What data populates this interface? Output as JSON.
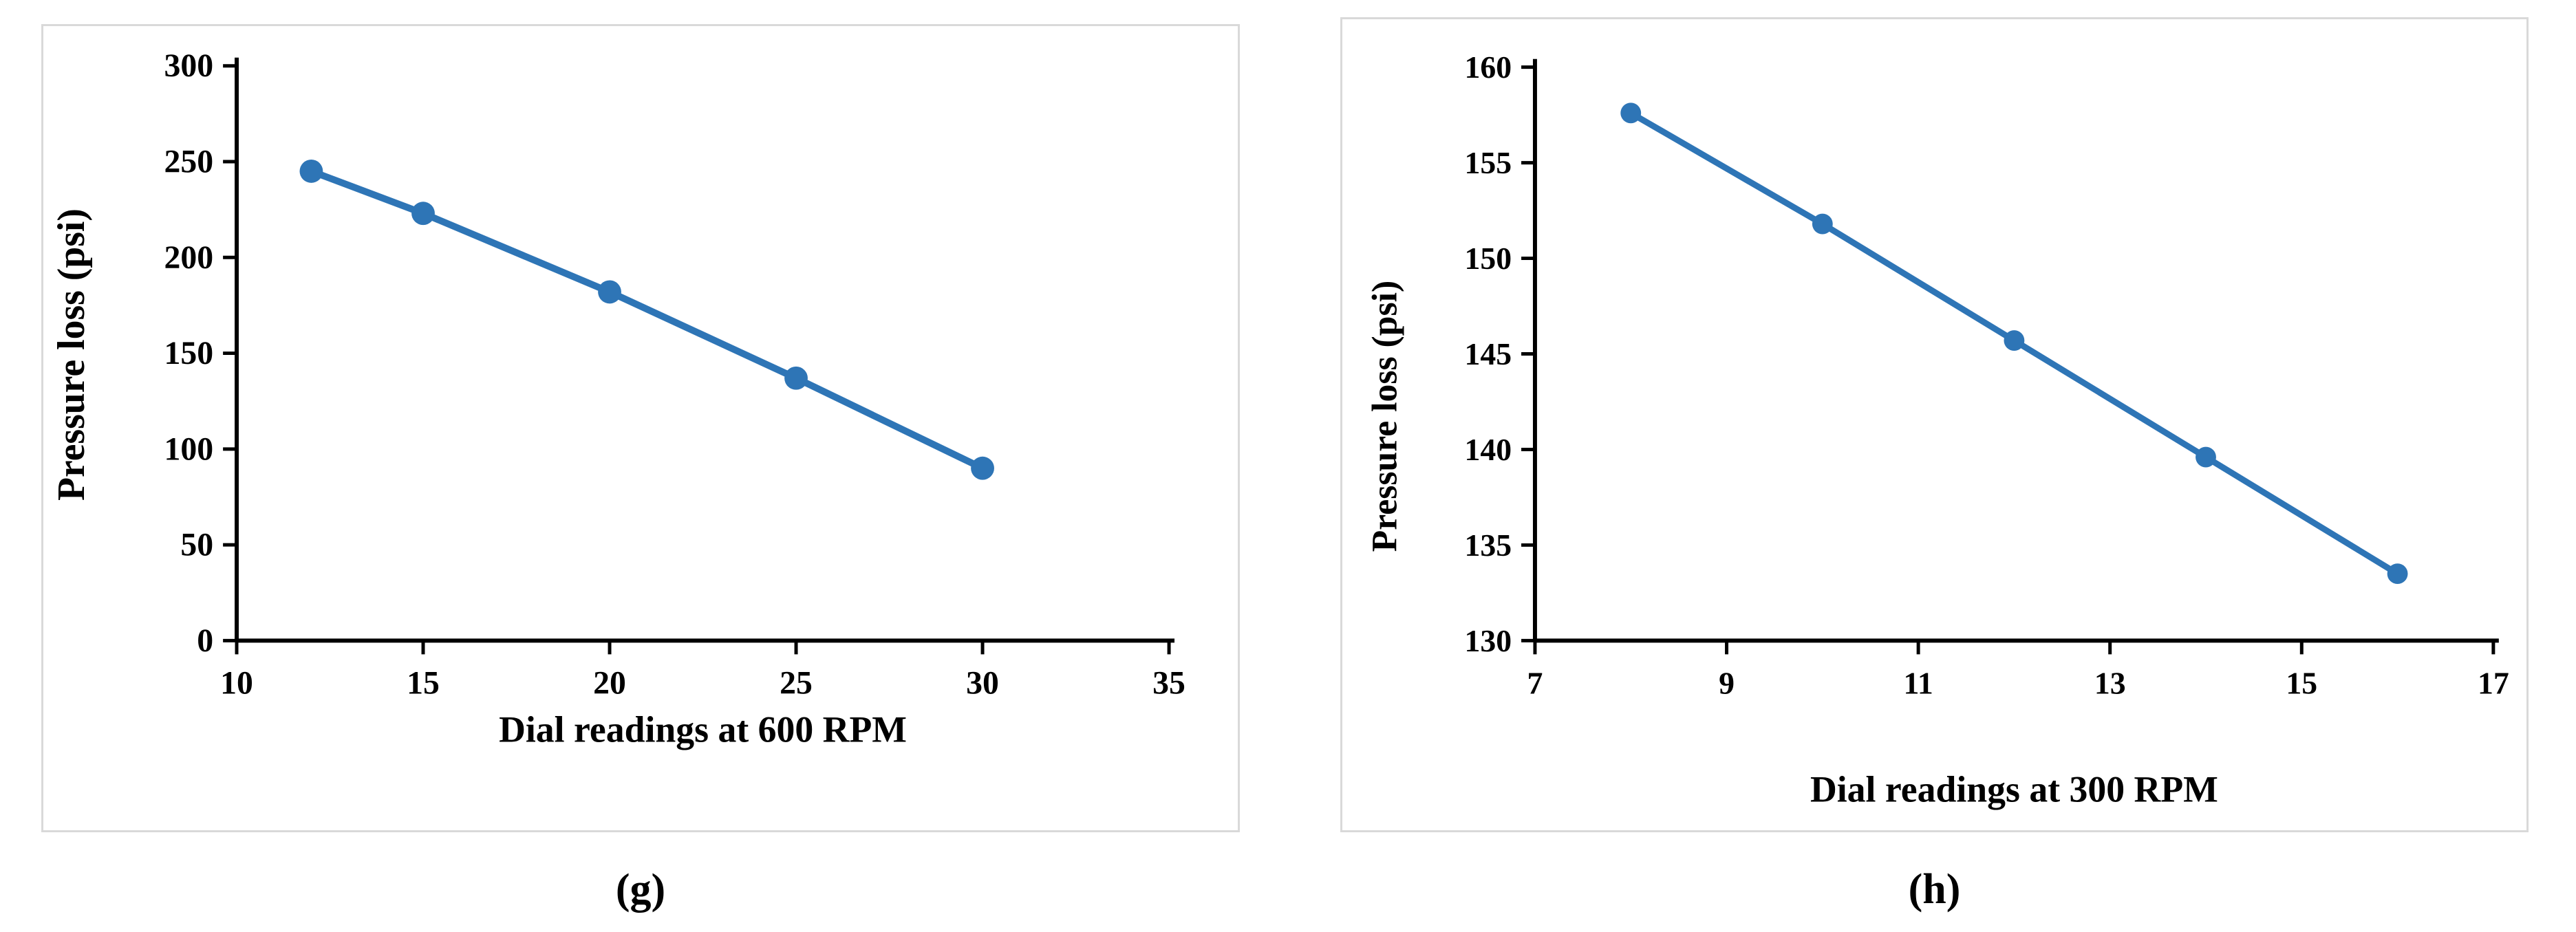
{
  "figure": {
    "background": "#ffffff",
    "panel_border_color": "#d9d9d9",
    "line_color": "#2e75b6",
    "marker_color": "#2e75b6",
    "axis_color": "#000000",
    "text_color": "#000000"
  },
  "chart_data": [
    {
      "type": "line",
      "panel_label": "(g)",
      "title": "",
      "xlabel": "Dial readings at 600 RPM",
      "ylabel": "Pressure loss (psi)",
      "x": [
        12,
        15,
        20,
        25,
        30
      ],
      "y": [
        245,
        223,
        182,
        137,
        90
      ],
      "xlim": [
        10,
        35
      ],
      "ylim": [
        0,
        300
      ],
      "xticks": [
        10,
        15,
        20,
        25,
        30,
        35
      ],
      "yticks": [
        0,
        50,
        100,
        150,
        200,
        250,
        300
      ],
      "grid": false,
      "legend": null,
      "marker": "circle"
    },
    {
      "type": "line",
      "panel_label": "(h)",
      "title": "",
      "xlabel": "Dial readings at 300 RPM",
      "ylabel": "Pressure loss (psi)",
      "x": [
        8,
        10,
        12,
        14,
        16
      ],
      "y": [
        157.6,
        151.8,
        145.7,
        139.6,
        133.5
      ],
      "xlim": [
        7,
        17
      ],
      "ylim": [
        130,
        160
      ],
      "xticks": [
        7,
        9,
        11,
        13,
        15,
        17
      ],
      "yticks": [
        130,
        135,
        140,
        145,
        150,
        155,
        160
      ],
      "grid": false,
      "legend": null,
      "marker": "circle"
    }
  ]
}
